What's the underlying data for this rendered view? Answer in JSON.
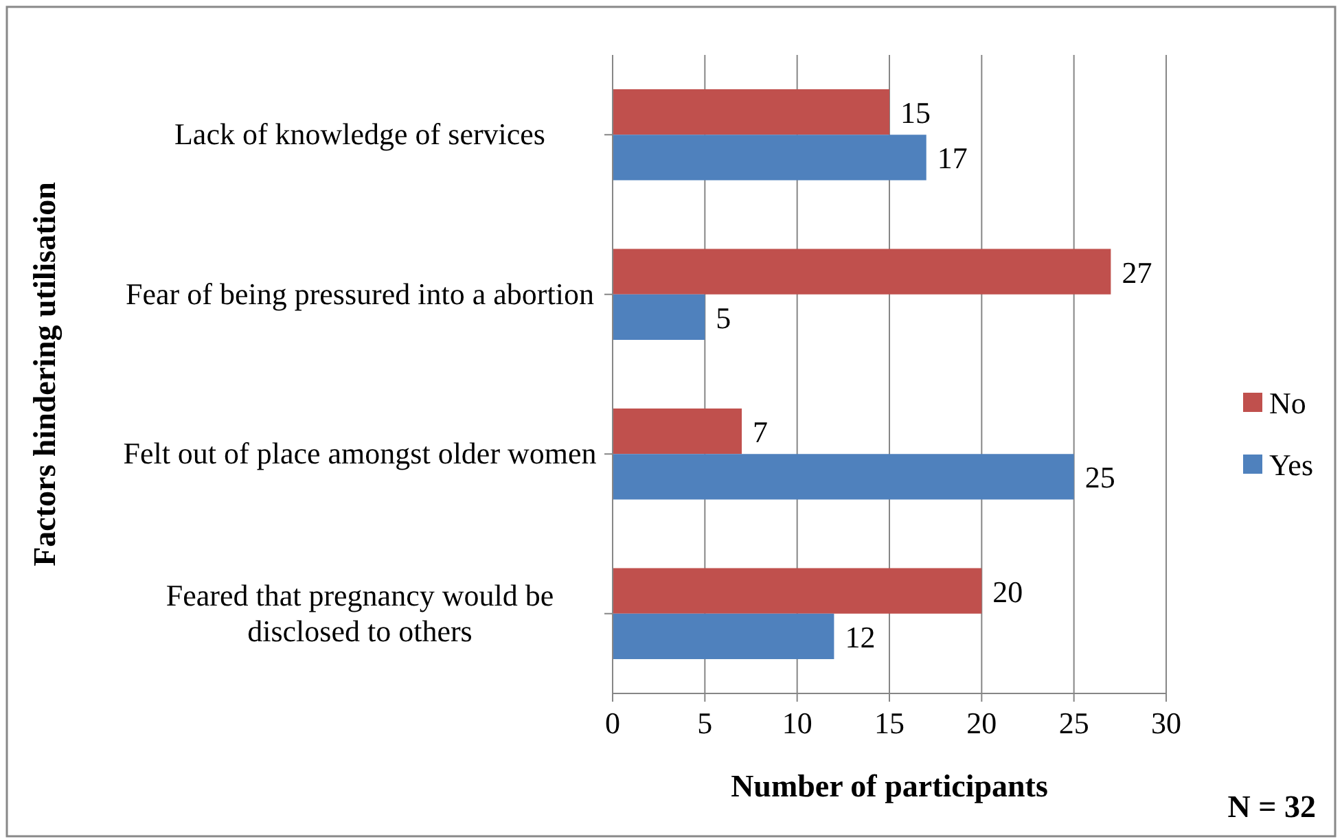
{
  "chart_data": {
    "type": "bar",
    "orientation": "horizontal",
    "categories": [
      "Lack of knowledge of services",
      "Fear of being pressured into a abortion",
      "Felt out of place amongst older women",
      "Feared that pregnancy would be disclosed to others"
    ],
    "series": [
      {
        "name": "No",
        "color": "#c0504d",
        "values": [
          15,
          27,
          7,
          20
        ]
      },
      {
        "name": "Yes",
        "color": "#4f81bd",
        "values": [
          17,
          5,
          25,
          12
        ]
      }
    ],
    "xlim": [
      0,
      30
    ],
    "xticks": [
      0,
      5,
      10,
      15,
      20,
      25,
      30
    ],
    "xlabel": "Number of participants",
    "ylabel": "Factors hindering utilisation",
    "annotations": [
      "N = 32"
    ],
    "grid": "x",
    "legend": "right",
    "data_labels": true
  }
}
